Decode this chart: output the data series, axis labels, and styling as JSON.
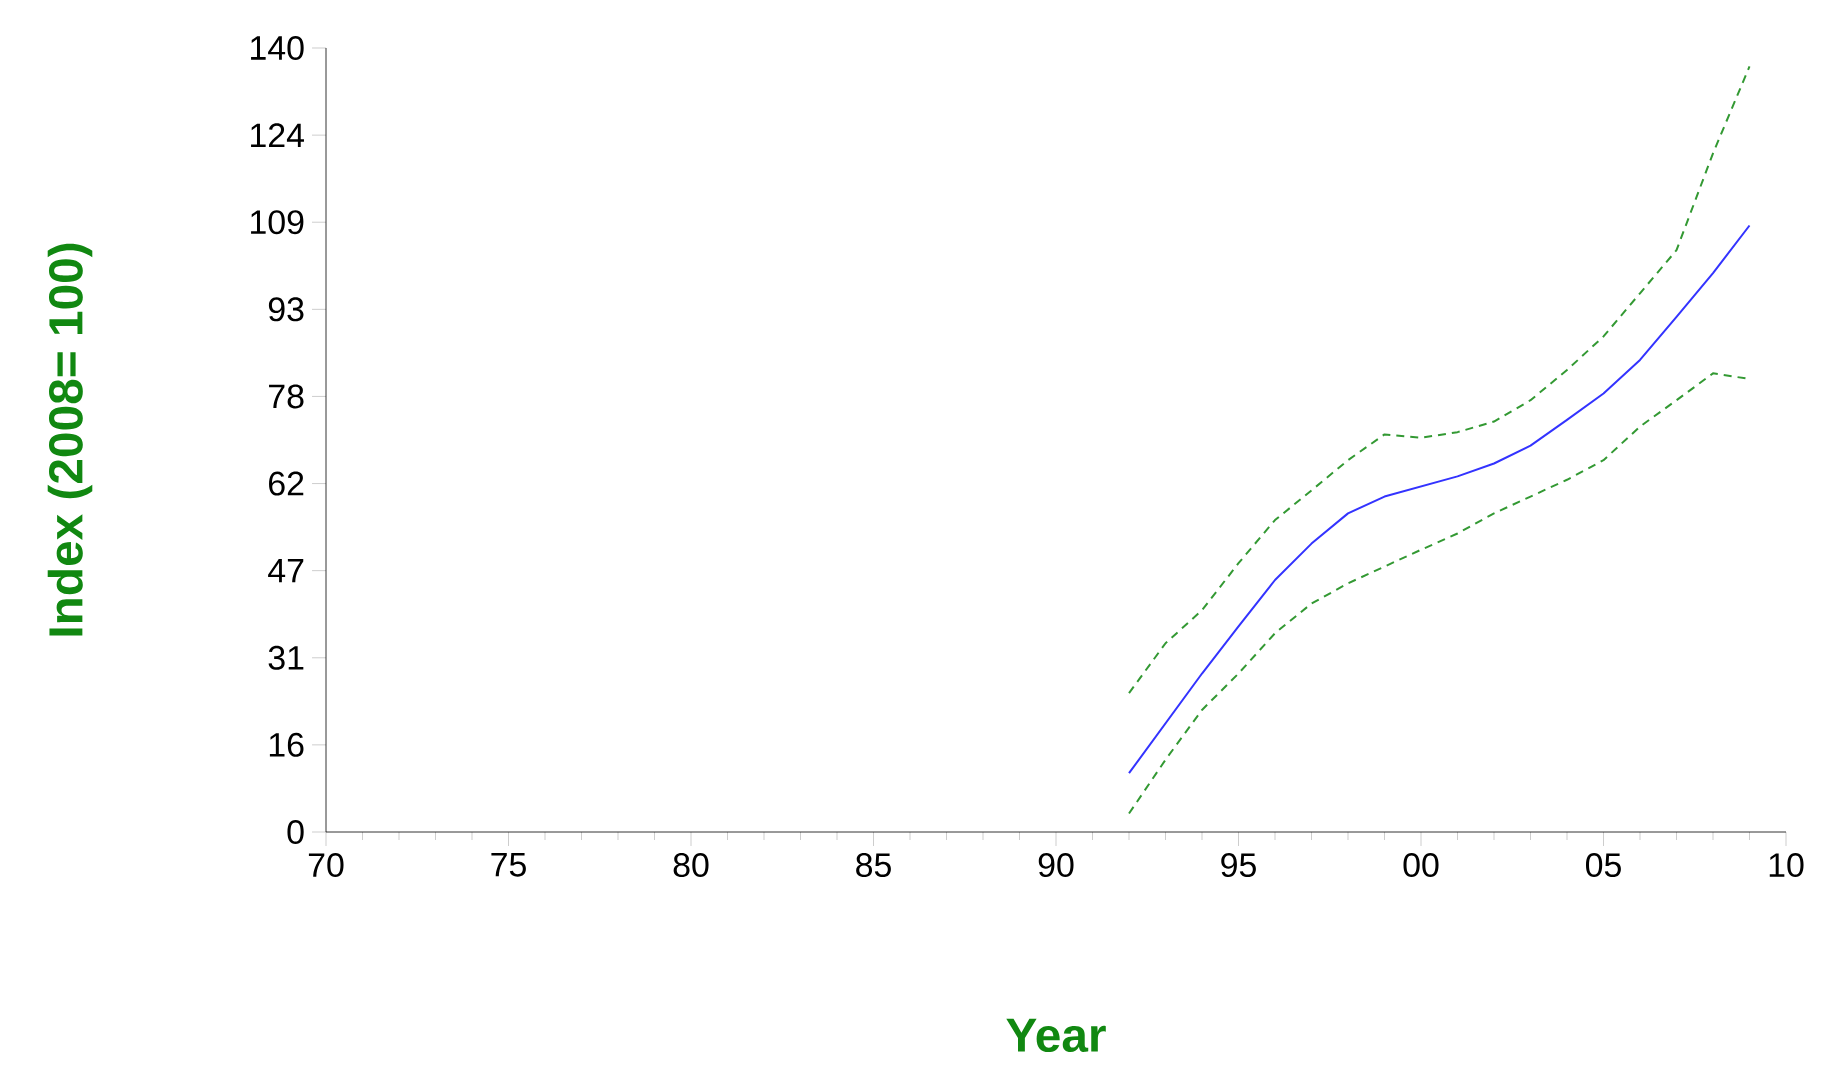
{
  "chart_data": {
    "type": "line",
    "xlabel": "Year",
    "ylabel": "Index (2008= 100)",
    "x": [
      1992,
      1993,
      1994,
      1995,
      1996,
      1997,
      1998,
      1999,
      2000,
      2001,
      2002,
      2003,
      2004,
      2005,
      2006,
      2007,
      2008,
      2009
    ],
    "series": [
      {
        "color": "#3333ff",
        "line_style": "solid",
        "values": [
          10.5,
          19.4,
          28.3,
          36.7,
          45,
          51.5,
          56.9,
          59.9,
          61.7,
          63.5,
          65.8,
          69,
          73.6,
          78.3,
          84.3,
          92,
          99.8,
          108.3
        ]
      },
      {
        "color": "#339933",
        "line_style": "dashed",
        "values": [
          24.8,
          33.7,
          39.6,
          48,
          55.7,
          61,
          66.4,
          71,
          70.4,
          71.4,
          73.3,
          77.1,
          82.5,
          88.5,
          96.2,
          103.9,
          121.2,
          136.7
        ]
      },
      {
        "color": "#339933",
        "line_style": "dashed",
        "values": [
          3.3,
          12.9,
          21.8,
          28.3,
          35.5,
          40.8,
          44.4,
          47.4,
          50.4,
          53.3,
          56.9,
          59.9,
          62.9,
          66.4,
          72.4,
          77.1,
          81.9,
          80.9
        ]
      }
    ],
    "xlim": [
      1970,
      2010
    ],
    "xticks": [
      {
        "value": 1970,
        "label": "70"
      },
      {
        "value": 1975,
        "label": "75"
      },
      {
        "value": 1980,
        "label": "80"
      },
      {
        "value": 1985,
        "label": "85"
      },
      {
        "value": 1990,
        "label": "90"
      },
      {
        "value": 1995,
        "label": "95"
      },
      {
        "value": 2000,
        "label": "00"
      },
      {
        "value": 2005,
        "label": "05"
      },
      {
        "value": 2010,
        "label": "10"
      }
    ],
    "ylim": [
      0,
      140
    ],
    "yticks": [
      0,
      {
        "value": 15.56,
        "label": "16"
      },
      {
        "value": 31.11,
        "label": "31"
      },
      {
        "value": 46.67,
        "label": "47"
      },
      {
        "value": 62.22,
        "label": "62"
      },
      {
        "value": 77.78,
        "label": "78"
      },
      {
        "value": 93.33,
        "label": "93"
      },
      {
        "value": 108.89,
        "label": "109"
      },
      {
        "value": 124.44,
        "label": "124"
      },
      140
    ],
    "marker": "none"
  }
}
